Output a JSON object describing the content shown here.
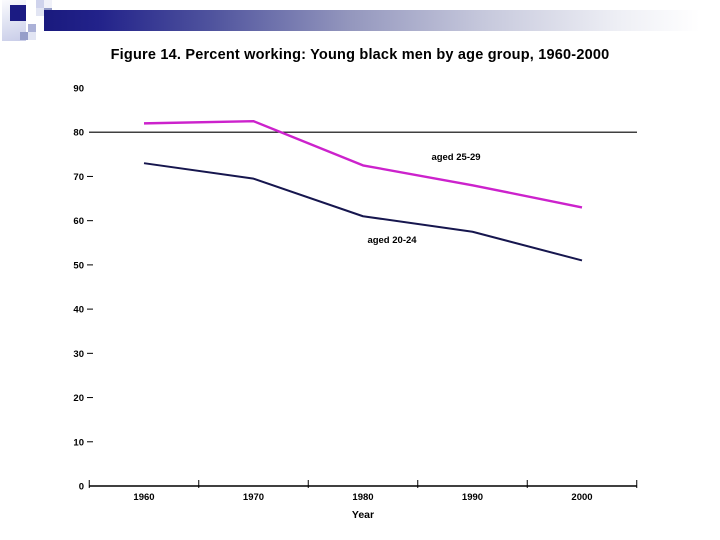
{
  "slide": {
    "title": "Figure 14. Percent working: Young black men by age group, 1960-2000"
  },
  "decoration": {
    "accent_navy": "#1b1b83",
    "bar_gradient_start": "#1a1a7e",
    "bar_gradient_end": "#ffffff",
    "mosaic_periwinkle": "#949cc8"
  },
  "chart_data": {
    "type": "line",
    "title": "",
    "xlabel": "Year",
    "ylabel": "",
    "categories": [
      "1960",
      "1970",
      "1980",
      "1990",
      "2000"
    ],
    "series": [
      {
        "name": "aged 25-29",
        "color": "#cc22cc",
        "values": [
          82,
          82.5,
          72.5,
          68,
          63
        ]
      },
      {
        "name": "aged 20-24",
        "color": "#16164e",
        "values": [
          73,
          69.5,
          61,
          57.5,
          51
        ]
      }
    ],
    "ylim": [
      0,
      90
    ],
    "yticks": [
      0,
      10,
      20,
      30,
      40,
      50,
      60,
      70,
      80,
      90
    ],
    "ytick_dashes": [
      10,
      20,
      30,
      40,
      50,
      60,
      70
    ],
    "reference_line_at": 80,
    "axis_color": "#000000",
    "grid": "off (single horizontal reference line at 80 plus zero baseline)",
    "legend_position": "inline data labels near lines"
  }
}
